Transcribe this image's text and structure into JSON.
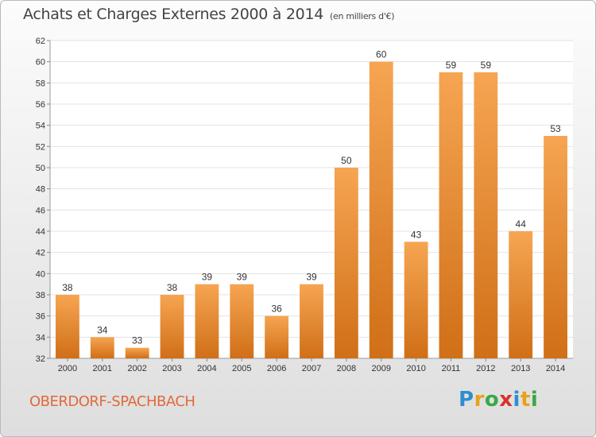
{
  "header": {
    "title": "Achats et Charges Externes 2000 à 2014",
    "unit": "(en milliers d'€)"
  },
  "footer": {
    "commune": "OBERDORF-SPACHBACH",
    "brand": "Proxiti"
  },
  "colors": {
    "bar_top": "#f6a552",
    "bar_bottom": "#d06f17",
    "grid": "#e3e3e3",
    "plot_bg": "#ffffff",
    "brand_accent": "#e06a3c"
  },
  "chart_data": {
    "type": "bar",
    "title": "Achats et Charges Externes 2000 à 2014",
    "unit": "(en milliers d'€)",
    "categories": [
      "2000",
      "2001",
      "2002",
      "2003",
      "2004",
      "2005",
      "2006",
      "2007",
      "2008",
      "2009",
      "2010",
      "2011",
      "2012",
      "2013",
      "2014"
    ],
    "values": [
      38,
      34,
      33,
      38,
      39,
      39,
      36,
      39,
      50,
      60,
      43,
      59,
      59,
      44,
      53
    ],
    "value_labels": [
      "38",
      "34",
      "33",
      "38",
      "39",
      "39",
      "36",
      "39",
      "50",
      "60",
      "43",
      "59",
      "59",
      "44",
      "53"
    ],
    "ylim": [
      32,
      62
    ],
    "yticks": [
      "32",
      "34",
      "36",
      "38",
      "40",
      "42",
      "44",
      "46",
      "48",
      "50",
      "52",
      "54",
      "56",
      "58",
      "60",
      "62"
    ],
    "grid": true,
    "legend": "none"
  }
}
